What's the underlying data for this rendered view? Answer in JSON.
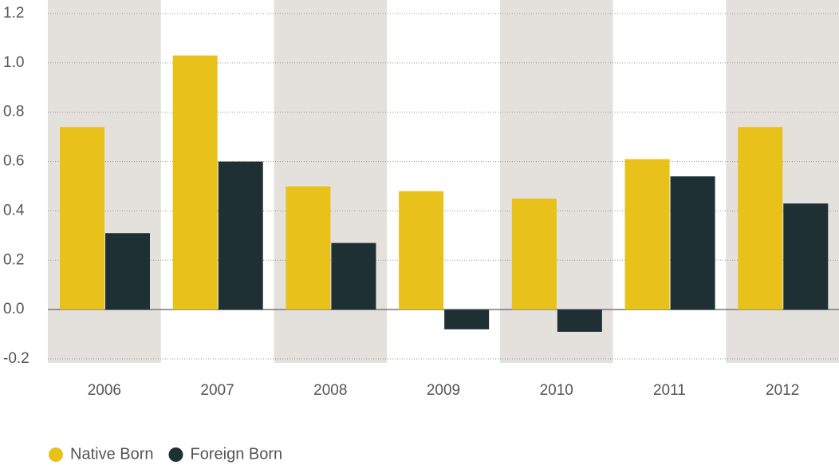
{
  "chart_data": {
    "type": "bar",
    "categories": [
      "2006",
      "2007",
      "2008",
      "2009",
      "2010",
      "2011",
      "2012"
    ],
    "series": [
      {
        "name": "Native Born",
        "color": "#e8c21a",
        "values": [
          0.74,
          1.03,
          0.5,
          0.48,
          0.45,
          0.61,
          0.74
        ]
      },
      {
        "name": "Foreign Born",
        "color": "#1f3035",
        "values": [
          0.31,
          0.6,
          0.27,
          -0.08,
          -0.09,
          0.54,
          0.43
        ]
      }
    ],
    "ylim": [
      -0.2,
      1.2
    ],
    "yticks": [
      -0.2,
      {
        "value": 0,
        "label": "0.0"
      },
      0.2,
      0.4,
      0.6,
      0.8,
      {
        "value": 1,
        "label": "1.0"
      },
      1.2
    ],
    "grid": true,
    "legend": "bottom-left"
  }
}
